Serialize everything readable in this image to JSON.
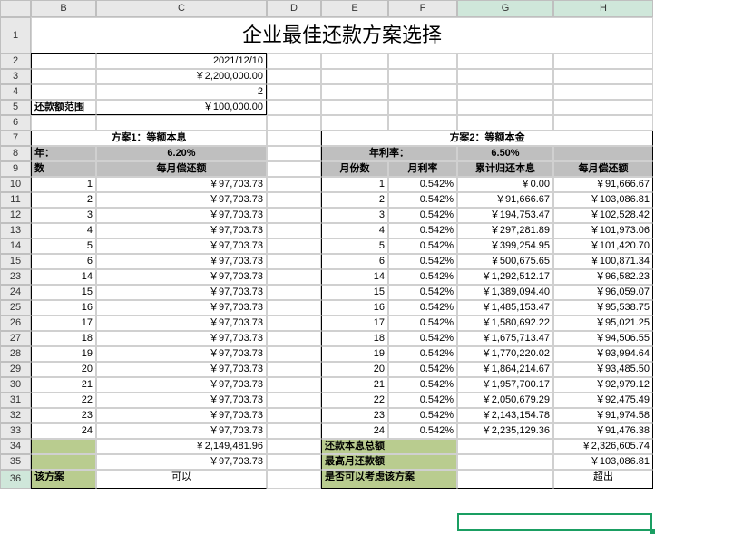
{
  "columns": [
    "B",
    "C",
    "D",
    "E",
    "F",
    "G",
    "H"
  ],
  "title": "企业最佳还款方案选择",
  "date": "2021/12/10",
  "loan_amount": "￥2,200,000.00",
  "param2": "2",
  "range_label": "还款额范围",
  "range_value": "￥100,000.00",
  "plan1": {
    "name": "方案1：等额本息",
    "rate_label": "年：",
    "rate_value": "6.20%",
    "col_idx": "数",
    "col_pay": "每月偿还额",
    "rows": [
      [
        "1",
        "￥97,703.73"
      ],
      [
        "2",
        "￥97,703.73"
      ],
      [
        "3",
        "￥97,703.73"
      ],
      [
        "4",
        "￥97,703.73"
      ],
      [
        "5",
        "￥97,703.73"
      ],
      [
        "6",
        "￥97,703.73"
      ],
      [
        "14",
        "￥97,703.73"
      ],
      [
        "15",
        "￥97,703.73"
      ],
      [
        "16",
        "￥97,703.73"
      ],
      [
        "17",
        "￥97,703.73"
      ],
      [
        "18",
        "￥97,703.73"
      ],
      [
        "19",
        "￥97,703.73"
      ],
      [
        "20",
        "￥97,703.73"
      ],
      [
        "21",
        "￥97,703.73"
      ],
      [
        "22",
        "￥97,703.73"
      ],
      [
        "23",
        "￥97,703.73"
      ],
      [
        "24",
        "￥97,703.73"
      ]
    ],
    "total": "￥2,149,481.96",
    "monthly": "￥97,703.73",
    "decide_label": "该方案",
    "decide_value": "可以"
  },
  "plan2": {
    "name": "方案2：等额本金",
    "rate_label": "年利率：",
    "rate_value": "6.50%",
    "cols": [
      "月份数",
      "月利率",
      "累计归还本息",
      "每月偿还额"
    ],
    "rows": [
      [
        "1",
        "0.542%",
        "￥0.00",
        "￥91,666.67"
      ],
      [
        "2",
        "0.542%",
        "￥91,666.67",
        "￥103,086.81"
      ],
      [
        "3",
        "0.542%",
        "￥194,753.47",
        "￥102,528.42"
      ],
      [
        "4",
        "0.542%",
        "￥297,281.89",
        "￥101,973.06"
      ],
      [
        "5",
        "0.542%",
        "￥399,254.95",
        "￥101,420.70"
      ],
      [
        "6",
        "0.542%",
        "￥500,675.65",
        "￥100,871.34"
      ],
      [
        "14",
        "0.542%",
        "￥1,292,512.17",
        "￥96,582.23"
      ],
      [
        "15",
        "0.542%",
        "￥1,389,094.40",
        "￥96,059.07"
      ],
      [
        "16",
        "0.542%",
        "￥1,485,153.47",
        "￥95,538.75"
      ],
      [
        "17",
        "0.542%",
        "￥1,580,692.22",
        "￥95,021.25"
      ],
      [
        "18",
        "0.542%",
        "￥1,675,713.47",
        "￥94,506.55"
      ],
      [
        "19",
        "0.542%",
        "￥1,770,220.02",
        "￥93,994.64"
      ],
      [
        "20",
        "0.542%",
        "￥1,864,214.67",
        "￥93,485.50"
      ],
      [
        "21",
        "0.542%",
        "￥1,957,700.17",
        "￥92,979.12"
      ],
      [
        "22",
        "0.542%",
        "￥2,050,679.29",
        "￥92,475.49"
      ],
      [
        "23",
        "0.542%",
        "￥2,143,154.78",
        "￥91,974.58"
      ],
      [
        "24",
        "0.542%",
        "￥2,235,129.36",
        "￥91,476.38"
      ]
    ],
    "total_label": "还款本息总额",
    "total": "￥2,326,605.74",
    "max_label": "最高月还款额",
    "max": "￥103,086.81",
    "decide_label": "是否可以考虑该方案",
    "decide_value": "超出"
  },
  "row_nums_top": [
    "1",
    "2",
    "3",
    "4",
    "5",
    "6"
  ],
  "row_nums_data": [
    "10",
    "11",
    "12",
    "13",
    "14",
    "15",
    "23",
    "24",
    "25",
    "26",
    "27",
    "28",
    "29",
    "30",
    "31",
    "32",
    "33"
  ],
  "row_nums_bot": [
    "34",
    "35",
    "36"
  ]
}
